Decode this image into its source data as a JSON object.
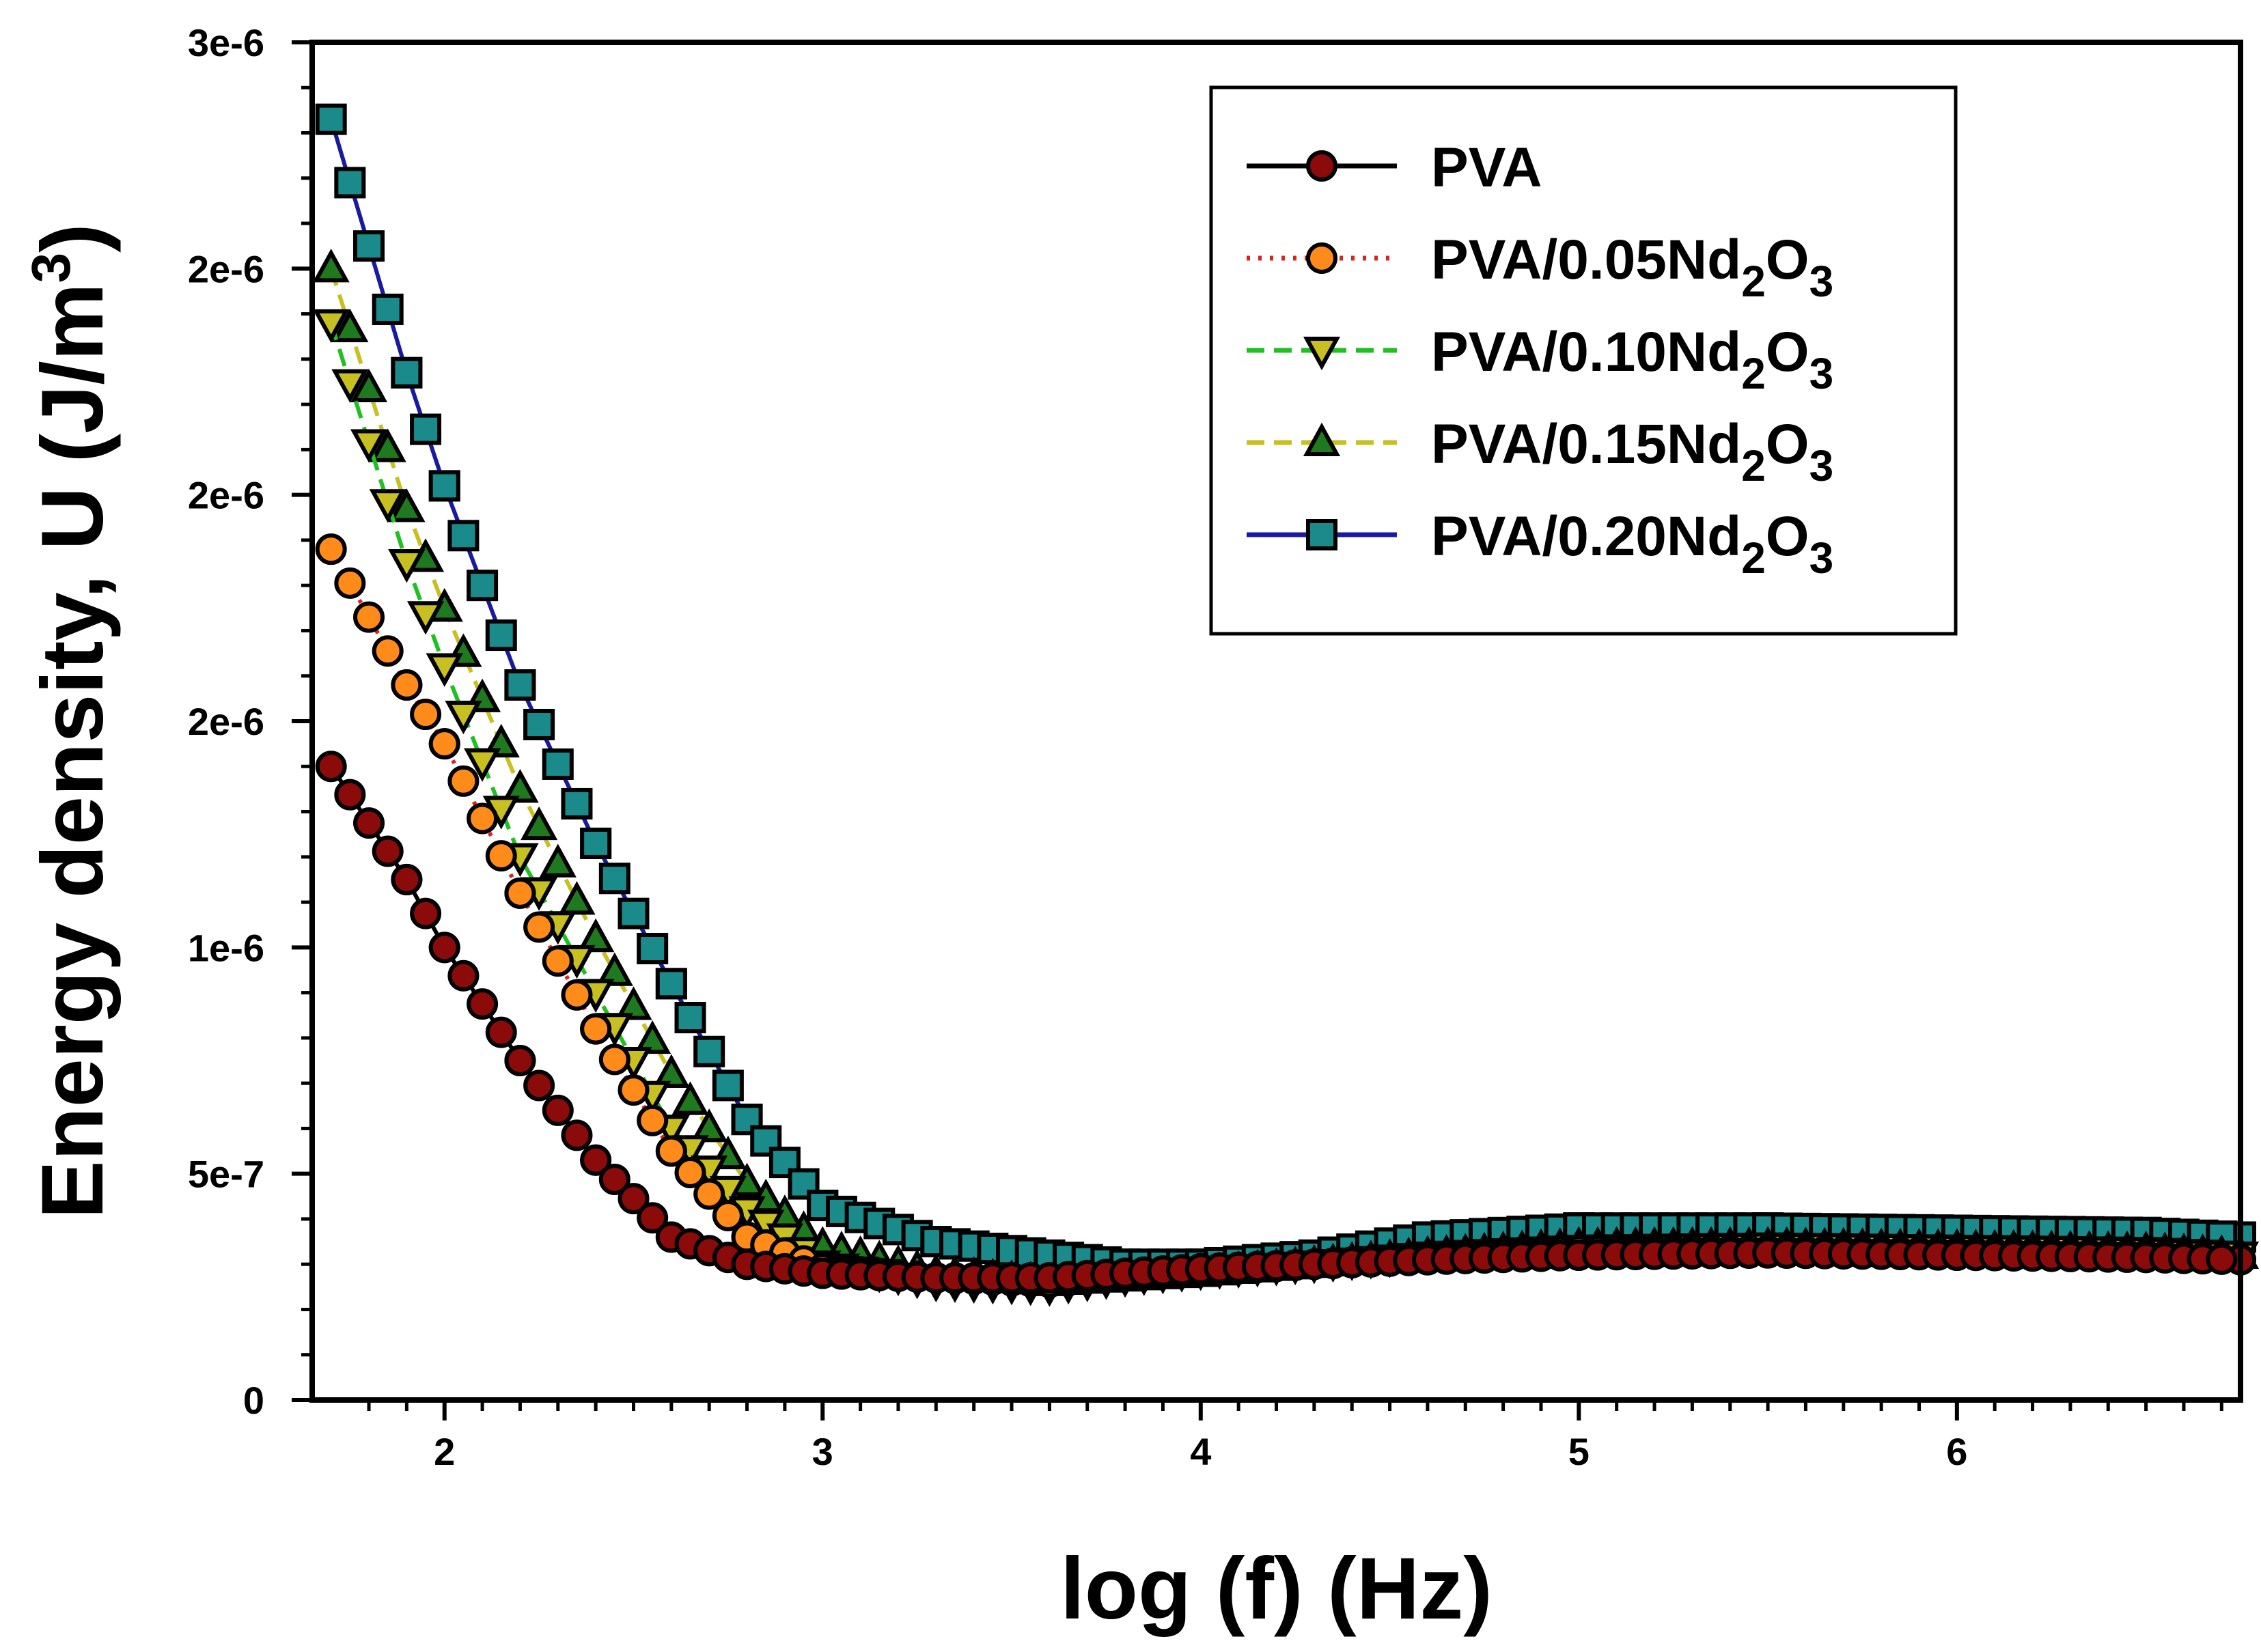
{
  "chart_data": {
    "type": "line",
    "title": "",
    "xlabel": "log (f) (Hz)",
    "ylabel": "Energy density, U (J/m",
    "ylabel_sup": "3",
    "ylabel_close": ")",
    "xlim": [
      1.65,
      6.75
    ],
    "ylim": [
      0,
      3e-06
    ],
    "x_ticks": [
      2,
      3,
      4,
      5,
      6
    ],
    "x_tick_labels": [
      "2",
      "3",
      "4",
      "5",
      "6"
    ],
    "y_ticks": [
      0,
      5e-07,
      1e-06,
      1.5e-06,
      2e-06,
      2.5e-06,
      3e-06
    ],
    "y_tick_labels": [
      "0",
      "5e-7",
      "1e-6",
      "2e-6",
      "2e-6",
      "2e-6",
      "3e-6"
    ],
    "grid": false,
    "legend_position": "top-right",
    "x": [
      1.7,
      1.9,
      2.0,
      2.2,
      2.4,
      2.6,
      2.8,
      3.0,
      3.3,
      3.6,
      3.8,
      4.0,
      4.3,
      4.6,
      5.0,
      5.5,
      6.0,
      6.5,
      6.75
    ],
    "series": [
      {
        "name": "PVA/0.20Nd2O3",
        "base": "PVA/0.20Nd",
        "sub1": "2",
        "mid": "O",
        "sub2": "3",
        "marker": "square",
        "line_style": "solid",
        "line_color": "#1a1aa0",
        "marker_color": "#1a8a8a",
        "values": [
          2.83e-06,
          2.27e-06,
          2.02e-06,
          1.58e-06,
          1.23e-06,
          9.2e-07,
          6.2e-07,
          4.3e-07,
          3.5e-07,
          3.2e-07,
          3e-07,
          3e-07,
          3.2e-07,
          3.6e-07,
          3.8e-07,
          3.8e-07,
          3.75e-07,
          3.7e-07,
          3.6e-07
        ]
      },
      {
        "name": "PVA/0.15Nd2O3",
        "base": "PVA/0.15Nd",
        "sub1": "2",
        "mid": "O",
        "sub2": "3",
        "marker": "triangle-up",
        "line_style": "dashed",
        "line_color": "#c8c020",
        "marker_color": "#1f7a1f",
        "values": [
          2.5e-06,
          1.97e-06,
          1.75e-06,
          1.35e-06,
          1.02e-06,
          7.2e-07,
          4.8e-07,
          3.4e-07,
          2.8e-07,
          2.6e-07,
          2.7e-07,
          2.8e-07,
          3e-07,
          3.2e-07,
          3.4e-07,
          3.4e-07,
          3.35e-07,
          3.3e-07,
          3.2e-07
        ]
      },
      {
        "name": "PVA/0.10Nd2O3",
        "base": "PVA/0.10Nd",
        "sub1": "2",
        "mid": "O",
        "sub2": "3",
        "marker": "triangle-down",
        "line_style": "dashed",
        "line_color": "#20c020",
        "marker_color": "#c8c020",
        "values": [
          2.38e-06,
          1.85e-06,
          1.62e-06,
          1.2e-06,
          9e-07,
          6e-07,
          4.2e-07,
          3e-07,
          2.6e-07,
          2.5e-07,
          2.7e-07,
          2.85e-07,
          3e-07,
          3.2e-07,
          3.35e-07,
          3.4e-07,
          3.35e-07,
          3.3e-07,
          3.2e-07
        ]
      },
      {
        "name": "PVA/0.05Nd2O3",
        "base": "PVA/0.05Nd",
        "sub1": "2",
        "mid": "O",
        "sub2": "3",
        "marker": "circle",
        "line_style": "dotted",
        "line_color": "#e02020",
        "marker_color": "#ff8c1a",
        "values": [
          1.88e-06,
          1.58e-06,
          1.45e-06,
          1.12e-06,
          8.2e-07,
          5.5e-07,
          3.6e-07,
          2.9e-07,
          2.7e-07,
          2.6e-07,
          2.75e-07,
          2.85e-07,
          3e-07,
          3.15e-07,
          3.3e-07,
          3.3e-07,
          3.25e-07,
          3.2e-07,
          3.1e-07
        ]
      },
      {
        "name": "PVA",
        "base": "PVA",
        "sub1": "",
        "mid": "",
        "sub2": "",
        "marker": "circle",
        "line_style": "solid",
        "line_color": "#000000",
        "marker_color": "#8b0a0a",
        "values": [
          1.4e-06,
          1.15e-06,
          1e-06,
          7.5e-07,
          5.3e-07,
          3.6e-07,
          3e-07,
          2.8e-07,
          2.7e-07,
          2.7e-07,
          2.8e-07,
          2.9e-07,
          3e-07,
          3.1e-07,
          3.2e-07,
          3.25e-07,
          3.2e-07,
          3.15e-07,
          3.1e-07
        ]
      }
    ]
  }
}
